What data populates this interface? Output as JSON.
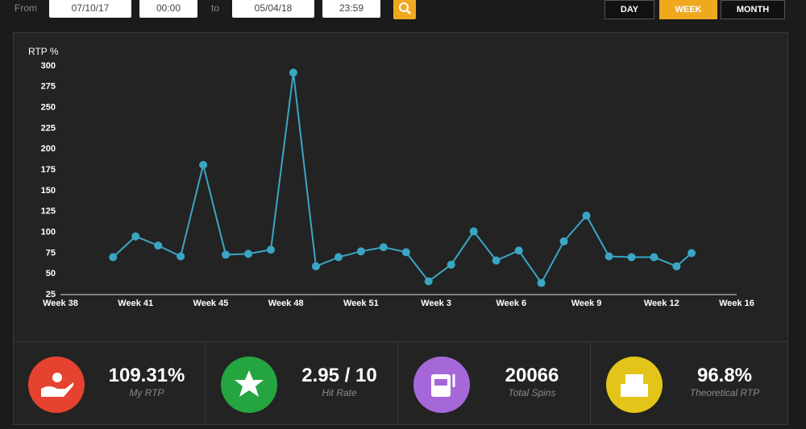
{
  "filters": {
    "from_label": "From",
    "from_date": "07/10/17",
    "from_time": "00:00",
    "to_label": "to",
    "to_date": "05/04/18",
    "to_time": "23:59",
    "periods": [
      "DAY",
      "WEEK",
      "MONTH"
    ],
    "active_period": 1
  },
  "chart_data": {
    "type": "line",
    "y_label": "RTP %",
    "color": "#3aa6c4",
    "x": [
      0.7,
      1.0,
      1.3,
      1.6,
      1.9,
      2.2,
      2.5,
      2.8,
      3.1,
      3.4,
      3.7,
      4.0,
      4.3,
      4.6,
      4.9,
      5.2,
      5.5,
      5.8,
      6.1,
      6.4,
      6.7,
      7.0,
      7.3,
      7.6,
      7.9,
      8.2,
      8.4
    ],
    "values": [
      70,
      95,
      84,
      71,
      181,
      73,
      74,
      79,
      292,
      59,
      70,
      77,
      82,
      76,
      41,
      61,
      101,
      66,
      78,
      39,
      89,
      120,
      71,
      70,
      70,
      59,
      75
    ],
    "xlim": [
      0,
      9
    ],
    "xticks": [
      {
        "value": 0,
        "label": "Week 38"
      },
      {
        "value": 1,
        "label": "Week 41"
      },
      {
        "value": 2,
        "label": "Week 45"
      },
      {
        "value": 3,
        "label": "Week 48"
      },
      {
        "value": 4,
        "label": "Week 51"
      },
      {
        "value": 5,
        "label": "Week 3"
      },
      {
        "value": 6,
        "label": "Week 6"
      },
      {
        "value": 7,
        "label": "Week 9"
      },
      {
        "value": 8,
        "label": "Week 12"
      },
      {
        "value": 9,
        "label": "Week 16"
      }
    ],
    "ylim": [
      25,
      300
    ],
    "yticks": [
      25,
      50,
      75,
      100,
      125,
      150,
      175,
      200,
      225,
      250,
      275,
      300
    ]
  },
  "stats": [
    {
      "value": "109.31%",
      "label": "My RTP"
    },
    {
      "value": "2.95 / 10",
      "label": "Hit Rate"
    },
    {
      "value": "20066",
      "label": "Total Spins"
    },
    {
      "value": "96.8%",
      "label": "Theoretical RTP"
    }
  ]
}
